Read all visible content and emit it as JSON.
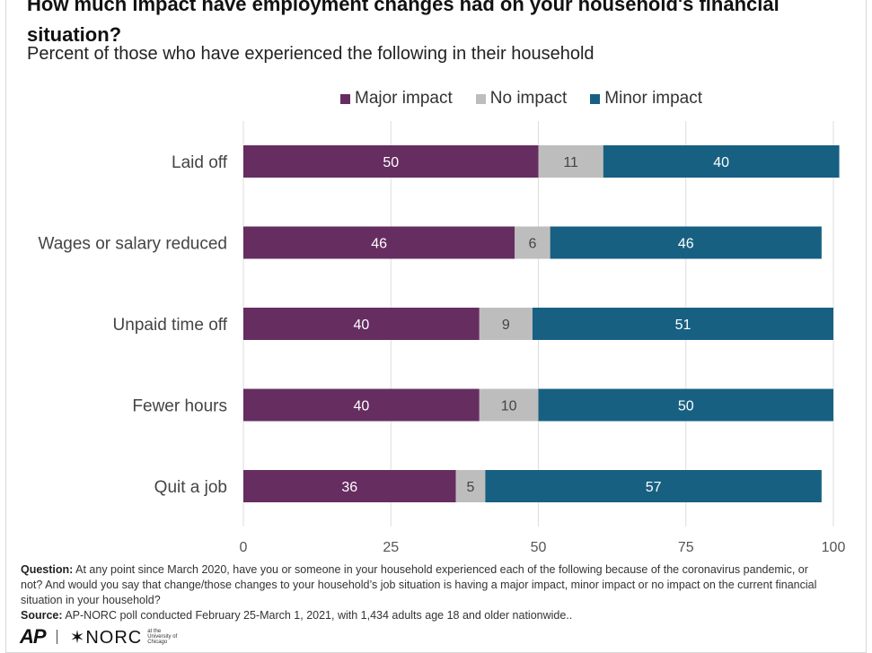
{
  "chart_data": {
    "type": "bar",
    "orientation": "horizontal",
    "stacked": true,
    "title": "How much impact have employment changes had on your household's financial situation?",
    "subtitle": "Percent of those who have experienced the following in their household",
    "categories": [
      "Laid off",
      "Wages or salary reduced",
      "Unpaid time off",
      "Fewer hours",
      "Quit a job"
    ],
    "series": [
      {
        "name": "Major impact",
        "color": "#662d61",
        "values": [
          50,
          46,
          40,
          40,
          36
        ]
      },
      {
        "name": "No impact",
        "color": "#bdbdbd",
        "values": [
          11,
          6,
          9,
          10,
          5
        ]
      },
      {
        "name": "Minor impact",
        "color": "#176082",
        "values": [
          40,
          46,
          51,
          50,
          57
        ]
      }
    ],
    "xlim": [
      0,
      100
    ],
    "xticks": [
      "0",
      "25",
      "50",
      "75",
      "100"
    ],
    "grid": true,
    "legend_position": "top"
  },
  "notes": {
    "question_label": "Question:",
    "question_text": "At any point since March 2020, have you or someone in your household experienced each of the following because of the coronavirus pandemic, or not? And would you say that change/those changes to your household’s job situation is having a major impact, minor impact or no impact on the current financial situation in your household?",
    "source_label": "Source:",
    "source_text": "AP-NORC poll conducted February 25-March 1, 2021, with 1,434 adults age 18 and older nationwide.."
  },
  "logos": {
    "ap": "AP",
    "norc": "✶NORC",
    "uchicago": "at the University of Chicago"
  }
}
